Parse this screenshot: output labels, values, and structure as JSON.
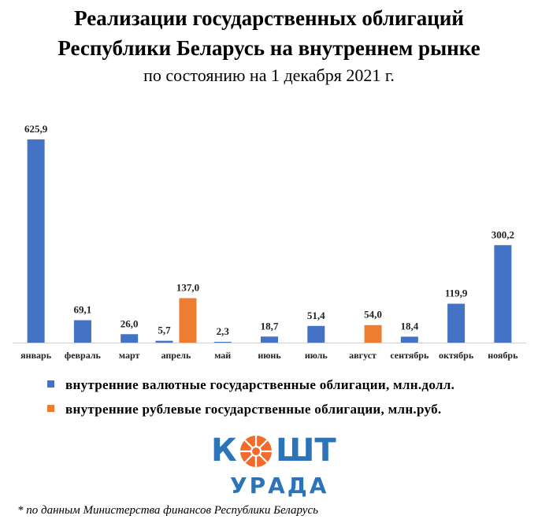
{
  "title_line1": "Реализации государственных облигаций",
  "title_line2": "Республики Беларусь на внутреннем рынке",
  "subtitle": "по состоянию на 1 декабря 2021 г.",
  "legend": [
    {
      "label": "внутренние валютные государственные облигации, млн.долл.",
      "color": "#4472c4"
    },
    {
      "label": "внутренние рублевые государственные облигации, млн.руб.",
      "color": "#ed7d31"
    }
  ],
  "logo": {
    "top": "К ШТ",
    "bottom": "УРАДА",
    "colors": {
      "blue": "#2d73b8",
      "orange": "#f26b2c"
    }
  },
  "footnote": "* по данным Министерства финансов Республики Беларусь",
  "chart_data": {
    "type": "bar",
    "categories": [
      "январь",
      "февраль",
      "март",
      "апрель",
      "май",
      "июнь",
      "июль",
      "август",
      "сентябрь",
      "октябрь",
      "ноябрь"
    ],
    "series": [
      {
        "name": "внутренние валютные государственные облигации, млн.долл.",
        "color": "#4472c4",
        "values": [
          625.9,
          69.1,
          26.0,
          5.7,
          2.3,
          18.7,
          51.4,
          null,
          18.4,
          119.9,
          300.2
        ],
        "labels": [
          "625,9",
          "69,1",
          "26,0",
          "5,7",
          "2,3",
          "18,7",
          "51,4",
          null,
          "18,4",
          "119,9",
          "300,2"
        ]
      },
      {
        "name": "внутренние рублевые государственные облигации, млн.руб.",
        "color": "#ed7d31",
        "values": [
          null,
          null,
          null,
          137.0,
          null,
          null,
          null,
          54.0,
          null,
          null,
          null
        ],
        "labels": [
          null,
          null,
          null,
          "137,0",
          null,
          null,
          null,
          "54,0",
          null,
          null,
          null
        ]
      }
    ],
    "ylim": [
      0,
      625.9
    ],
    "grid": false,
    "legend_position": "bottom"
  }
}
